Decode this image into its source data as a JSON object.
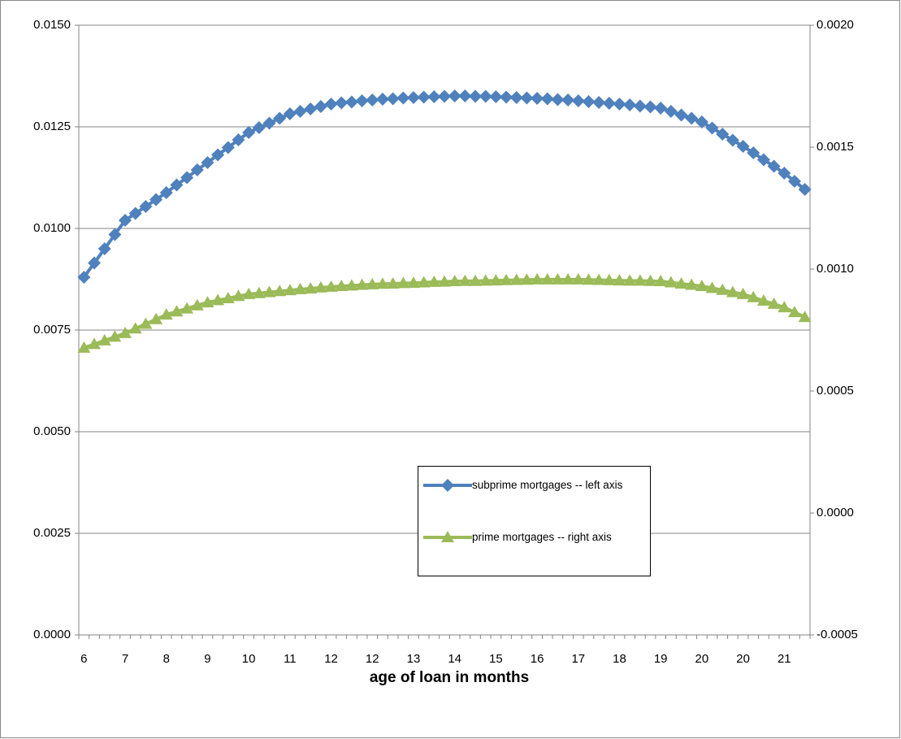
{
  "chart_data": {
    "type": "line",
    "xlabel": "age of loan in months",
    "categories": [
      "6",
      null,
      null,
      null,
      "7",
      null,
      null,
      null,
      "8",
      null,
      null,
      null,
      "9",
      null,
      null,
      null,
      "10",
      null,
      null,
      null,
      "11",
      null,
      null,
      null,
      "12",
      null,
      null,
      null,
      "12",
      null,
      null,
      null,
      "13",
      null,
      null,
      null,
      "14",
      null,
      null,
      null,
      "15",
      null,
      null,
      null,
      "16",
      null,
      null,
      null,
      "17",
      null,
      null,
      null,
      "18",
      null,
      null,
      null,
      "19",
      null,
      null,
      null,
      "20",
      null,
      null,
      null,
      "20",
      null,
      null,
      null,
      "21",
      null,
      null
    ],
    "series": [
      {
        "name": "subprime mortgages -- left axis",
        "color": "#4f81bd",
        "marker": "diamond",
        "values": [
          0.0088,
          0.00915,
          0.0095,
          0.00985,
          0.0102,
          0.01037,
          0.01054,
          0.01071,
          0.01088,
          0.01107,
          0.01125,
          0.01144,
          0.01162,
          0.01181,
          0.01199,
          0.01218,
          0.01236,
          0.01248,
          0.01259,
          0.01271,
          0.01282,
          0.01288,
          0.01294,
          0.013,
          0.01306,
          0.01309,
          0.01311,
          0.01314,
          0.01316,
          0.01318,
          0.01319,
          0.01321,
          0.01322,
          0.01323,
          0.01324,
          0.01325,
          0.01326,
          0.01326,
          0.01325,
          0.01325,
          0.01324,
          0.01323,
          0.01322,
          0.01321,
          0.0132,
          0.01319,
          0.01317,
          0.01316,
          0.01314,
          0.01312,
          0.0131,
          0.01308,
          0.01306,
          0.01304,
          0.01301,
          0.01299,
          0.01296,
          0.01288,
          0.01279,
          0.01271,
          0.01262,
          0.01247,
          0.01232,
          0.01217,
          0.01202,
          0.01186,
          0.01169,
          0.01153,
          0.01136,
          0.01116,
          0.01096
        ]
      },
      {
        "name": "prime mortgages -- right axis",
        "color": "#9bbb59",
        "marker": "triangle",
        "axis": "y2",
        "values": [
          0.000677,
          0.000692,
          0.000707,
          0.000722,
          0.000737,
          0.000756,
          0.000775,
          0.000794,
          0.000813,
          0.000826,
          0.000838,
          0.000851,
          0.000863,
          0.000872,
          0.00088,
          0.000889,
          0.000897,
          0.000901,
          0.000905,
          0.000909,
          0.000913,
          0.000917,
          0.00092,
          0.000924,
          0.000927,
          0.00093,
          0.000932,
          0.000935,
          0.000937,
          0.000939,
          0.00094,
          0.000942,
          0.000943,
          0.000945,
          0.000947,
          0.000948,
          0.00095,
          0.000951,
          0.000951,
          0.000952,
          0.000953,
          0.000954,
          0.000955,
          0.000956,
          0.000957,
          0.000957,
          0.000957,
          0.000957,
          0.000957,
          0.000956,
          0.000955,
          0.000954,
          0.000953,
          0.000952,
          0.000952,
          0.000951,
          0.00095,
          0.000945,
          0.00094,
          0.000935,
          0.00093,
          0.000922,
          0.000914,
          0.000905,
          0.000897,
          0.000884,
          0.00087,
          0.000857,
          0.000843,
          0.000823,
          0.000803
        ]
      }
    ],
    "ylim": [
      0,
      0.015
    ],
    "yticks": [
      {
        "value": 0,
        "label": "0.0000"
      },
      {
        "value": 0.0025,
        "label": "0.0025"
      },
      {
        "value": 0.005,
        "label": "0.0050"
      },
      {
        "value": 0.0075,
        "label": "0.0075"
      },
      {
        "value": 0.01,
        "label": "0.0100"
      },
      {
        "value": 0.0125,
        "label": "0.0125"
      },
      {
        "value": 0.015,
        "label": "0.0150"
      }
    ],
    "y2lim": [
      -0.0005,
      0.002
    ],
    "y2ticks": [
      {
        "value": -0.0005,
        "label": "-0.0005"
      },
      {
        "value": 0,
        "label": "0.0000"
      },
      {
        "value": 0.0005,
        "label": "0.0005"
      },
      {
        "value": 0.001,
        "label": "0.0010"
      },
      {
        "value": 0.0015,
        "label": "0.0015"
      },
      {
        "value": 0.002,
        "label": "0.0020"
      }
    ],
    "grid": true
  }
}
